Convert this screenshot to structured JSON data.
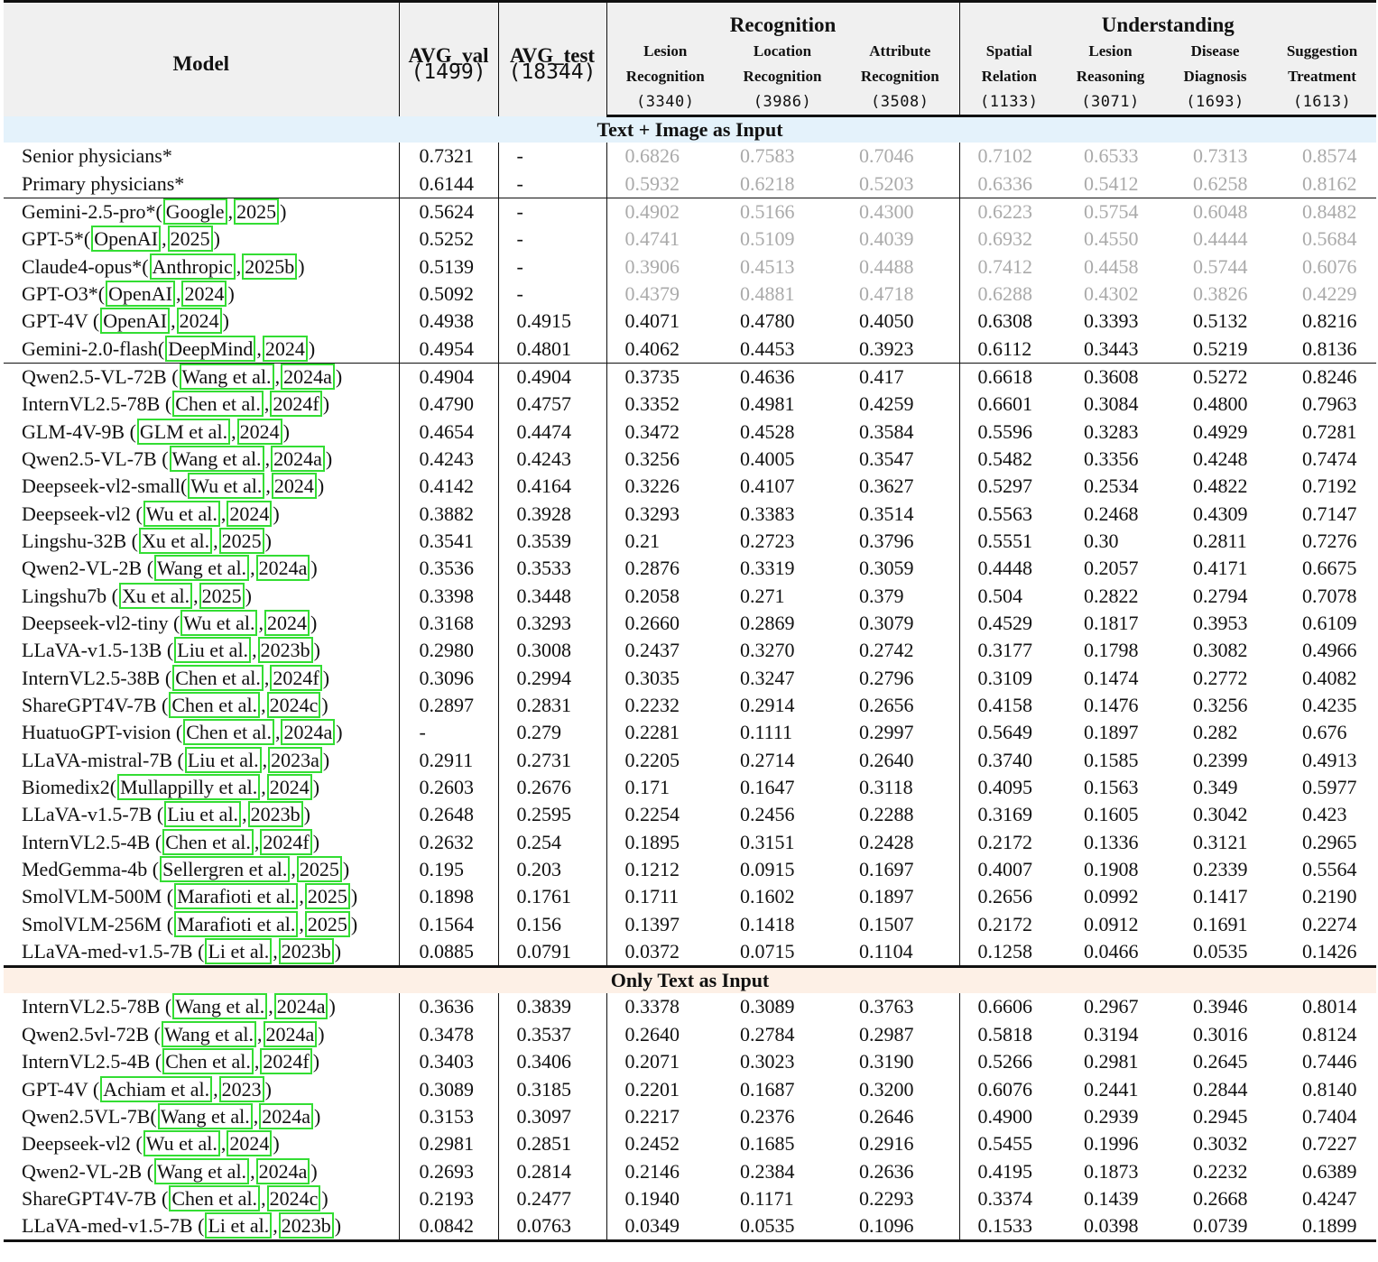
{
  "header": {
    "model": "Model",
    "avg_val": "AVG_val",
    "avg_val_count": "(1499)",
    "avg_test": "AVG_test",
    "avg_test_count": "(18344)",
    "group_recognition": "Recognition",
    "group_understanding": "Understanding",
    "columns": [
      {
        "line1": "Lesion",
        "line2": "Recognition",
        "count": "(3340)"
      },
      {
        "line1": "Location",
        "line2": "Recognition",
        "count": "(3986)"
      },
      {
        "line1": "Attribute",
        "line2": "Recognition",
        "count": "(3508)"
      },
      {
        "line1": "Spatial",
        "line2": "Relation",
        "count": "(1133)"
      },
      {
        "line1": "Lesion",
        "line2": "Reasoning",
        "count": "(3071)"
      },
      {
        "line1": "Disease",
        "line2": "Diagnosis",
        "count": "(1693)"
      },
      {
        "line1": "Suggestion",
        "line2": "Treatment",
        "count": "(1613)"
      }
    ]
  },
  "sections": [
    {
      "title": "Text + Image as Input",
      "rows": [
        {
          "name": "Senior physicians*",
          "cites": [],
          "values": [
            "0.7321",
            "-",
            "0.6826",
            "0.7583",
            "0.7046",
            "0.7102",
            "0.6533",
            "0.7313",
            "0.8574"
          ],
          "gray": true
        },
        {
          "name": "Primary physicians*",
          "cites": [],
          "values": [
            "0.6144",
            "-",
            "0.5932",
            "0.6218",
            "0.5203",
            "0.6336",
            "0.5412",
            "0.6258",
            "0.8162"
          ],
          "gray": true
        },
        {
          "name": "Gemini-2.5-pro*",
          "cites": [
            "Google",
            "2025"
          ],
          "values": [
            "0.5624",
            "-",
            "0.4902",
            "0.5166",
            "0.4300",
            "0.6223",
            "0.5754",
            "0.6048",
            "0.8482"
          ],
          "gray": true,
          "sep": true
        },
        {
          "name": "GPT-5*",
          "cites": [
            "OpenAI",
            "2025"
          ],
          "values": [
            "0.5252",
            "-",
            "0.4741",
            "0.5109",
            "0.4039",
            "0.6932",
            "0.4550",
            "0.4444",
            "0.5684"
          ],
          "gray": true
        },
        {
          "name": "Claude4-opus*",
          "cites": [
            "Anthropic",
            "2025b"
          ],
          "values": [
            "0.5139",
            "-",
            "0.3906",
            "0.4513",
            "0.4488",
            "0.7412",
            "0.4458",
            "0.5744",
            "0.6076"
          ],
          "gray": true
        },
        {
          "name": "GPT-O3*",
          "cites": [
            "OpenAI",
            "2024"
          ],
          "values": [
            "0.5092",
            "-",
            "0.4379",
            "0.4881",
            "0.4718",
            "0.6288",
            "0.4302",
            "0.3826",
            "0.4229"
          ],
          "gray": true
        },
        {
          "name": "GPT-4V ",
          "cites": [
            "OpenAI",
            "2024"
          ],
          "values": [
            "0.4938",
            "0.4915",
            "0.4071",
            "0.4780",
            "0.4050",
            "0.6308",
            "0.3393",
            "0.5132",
            "0.8216"
          ],
          "gray": false
        },
        {
          "name": "Gemini-2.0-flash",
          "cites": [
            "DeepMind",
            "2024"
          ],
          "values": [
            "0.4954",
            "0.4801",
            "0.4062",
            "0.4453",
            "0.3923",
            "0.6112",
            "0.3443",
            "0.5219",
            "0.8136"
          ],
          "gray": false
        },
        {
          "name": "Qwen2.5-VL-72B ",
          "cites": [
            "Wang et al.",
            "2024a"
          ],
          "values": [
            "0.4904",
            "0.4904",
            "0.3735",
            "0.4636",
            "0.417",
            "0.6618",
            "0.3608",
            "0.5272",
            "0.8246"
          ],
          "gray": false,
          "sep": true
        },
        {
          "name": "InternVL2.5-78B ",
          "cites": [
            "Chen et al.",
            "2024f"
          ],
          "values": [
            "0.4790",
            "0.4757",
            "0.3352",
            "0.4981",
            "0.4259",
            "0.6601",
            "0.3084",
            "0.4800",
            "0.7963"
          ],
          "gray": false
        },
        {
          "name": "GLM-4V-9B ",
          "cites": [
            "GLM et al.",
            "2024"
          ],
          "values": [
            "0.4654",
            "0.4474",
            "0.3472",
            "0.4528",
            "0.3584",
            "0.5596",
            "0.3283",
            "0.4929",
            "0.7281"
          ],
          "gray": false
        },
        {
          "name": "Qwen2.5-VL-7B ",
          "cites": [
            "Wang et al.",
            "2024a"
          ],
          "values": [
            "0.4243",
            "0.4243",
            "0.3256",
            "0.4005",
            "0.3547",
            "0.5482",
            "0.3356",
            "0.4248",
            "0.7474"
          ],
          "gray": false
        },
        {
          "name": "Deepseek-vl2-small",
          "cites": [
            "Wu et al.",
            "2024"
          ],
          "values": [
            "0.4142",
            "0.4164",
            "0.3226",
            "0.4107",
            "0.3627",
            "0.5297",
            "0.2534",
            "0.4822",
            "0.7192"
          ],
          "gray": false
        },
        {
          "name": "Deepseek-vl2 ",
          "cites": [
            "Wu et al.",
            "2024"
          ],
          "values": [
            "0.3882",
            "0.3928",
            "0.3293",
            "0.3383",
            "0.3514",
            "0.5563",
            "0.2468",
            "0.4309",
            "0.7147"
          ],
          "gray": false
        },
        {
          "name": "Lingshu-32B ",
          "cites": [
            "Xu et al.",
            "2025"
          ],
          "values": [
            "0.3541",
            "0.3539",
            "0.21",
            "0.2723",
            "0.3796",
            "0.5551",
            "0.30",
            "0.2811",
            "0.7276"
          ],
          "gray": false
        },
        {
          "name": "Qwen2-VL-2B ",
          "cites": [
            "Wang et al.",
            "2024a"
          ],
          "values": [
            "0.3536",
            "0.3533",
            "0.2876",
            "0.3319",
            "0.3059",
            "0.4448",
            "0.2057",
            "0.4171",
            "0.6675"
          ],
          "gray": false
        },
        {
          "name": "Lingshu7b ",
          "cites": [
            "Xu et al.",
            "2025"
          ],
          "values": [
            "0.3398",
            "0.3448",
            "0.2058",
            "0.271",
            "0.379",
            "0.504",
            "0.2822",
            "0.2794",
            "0.7078"
          ],
          "gray": false
        },
        {
          "name": "Deepseek-vl2-tiny ",
          "cites": [
            "Wu et al.",
            "2024"
          ],
          "values": [
            "0.3168",
            "0.3293",
            "0.2660",
            "0.2869",
            "0.3079",
            "0.4529",
            "0.1817",
            "0.3953",
            "0.6109"
          ],
          "gray": false
        },
        {
          "name": "LLaVA-v1.5-13B ",
          "cites": [
            "Liu et al.",
            "2023b"
          ],
          "values": [
            "0.2980",
            "0.3008",
            "0.2437",
            "0.3270",
            "0.2742",
            "0.3177",
            "0.1798",
            "0.3082",
            "0.4966"
          ],
          "gray": false
        },
        {
          "name": "InternVL2.5-38B ",
          "cites": [
            "Chen et al.",
            "2024f"
          ],
          "values": [
            "0.3096",
            "0.2994",
            "0.3035",
            "0.3247",
            "0.2796",
            "0.3109",
            "0.1474",
            "0.2772",
            "0.4082"
          ],
          "gray": false
        },
        {
          "name": "ShareGPT4V-7B ",
          "cites": [
            "Chen et al.",
            "2024c"
          ],
          "values": [
            "0.2897",
            "0.2831",
            "0.2232",
            "0.2914",
            "0.2656",
            "0.4158",
            "0.1476",
            "0.3256",
            "0.4235"
          ],
          "gray": false
        },
        {
          "name": "HuatuoGPT-vision ",
          "cites": [
            "Chen et al.",
            "2024a"
          ],
          "values": [
            "-",
            "0.279",
            "0.2281",
            "0.1111",
            "0.2997",
            "0.5649",
            "0.1897",
            "0.282",
            "0.676"
          ],
          "gray": false
        },
        {
          "name": "LLaVA-mistral-7B ",
          "cites": [
            "Liu et al.",
            "2023a"
          ],
          "values": [
            "0.2911",
            "0.2731",
            "0.2205",
            "0.2714",
            "0.2640",
            "0.3740",
            "0.1585",
            "0.2399",
            "0.4913"
          ],
          "gray": false
        },
        {
          "name": "Biomedix2",
          "cites": [
            "Mullappilly et al.",
            "2024"
          ],
          "values": [
            "0.2603",
            "0.2676",
            "0.171",
            "0.1647",
            "0.3118",
            "0.4095",
            "0.1563",
            "0.349",
            "0.5977"
          ],
          "gray": false
        },
        {
          "name": "LLaVA-v1.5-7B ",
          "cites": [
            "Liu et al.",
            "2023b"
          ],
          "values": [
            "0.2648",
            "0.2595",
            "0.2254",
            "0.2456",
            "0.2288",
            "0.3169",
            "0.1605",
            "0.3042",
            "0.423"
          ],
          "gray": false
        },
        {
          "name": "InternVL2.5-4B ",
          "cites": [
            "Chen et al.",
            "2024f"
          ],
          "values": [
            "0.2632",
            "0.254",
            "0.1895",
            "0.3151",
            "0.2428",
            "0.2172",
            "0.1336",
            "0.3121",
            "0.2965"
          ],
          "gray": false
        },
        {
          "name": "MedGemma-4b ",
          "cites": [
            "Sellergren et al.",
            "2025"
          ],
          "values": [
            "0.195",
            "0.203",
            "0.1212",
            "0.0915",
            "0.1697",
            "0.4007",
            "0.1908",
            "0.2339",
            "0.5564"
          ],
          "gray": false
        },
        {
          "name": "SmolVLM-500M ",
          "cites": [
            "Marafioti et al.",
            "2025"
          ],
          "values": [
            "0.1898",
            "0.1761",
            "0.1711",
            "0.1602",
            "0.1897",
            "0.2656",
            "0.0992",
            "0.1417",
            "0.2190"
          ],
          "gray": false
        },
        {
          "name": "SmolVLM-256M ",
          "cites": [
            "Marafioti et al.",
            "2025"
          ],
          "values": [
            "0.1564",
            "0.156",
            "0.1397",
            "0.1418",
            "0.1507",
            "0.2172",
            "0.0912",
            "0.1691",
            "0.2274"
          ],
          "gray": false
        },
        {
          "name": "LLaVA-med-v1.5-7B ",
          "cites": [
            "Li et al.",
            "2023b"
          ],
          "values": [
            "0.0885",
            "0.0791",
            "0.0372",
            "0.0715",
            "0.1104",
            "0.1258",
            "0.0466",
            "0.0535",
            "0.1426"
          ],
          "gray": false
        }
      ]
    },
    {
      "title": "Only Text as Input",
      "rows": [
        {
          "name": "InternVL2.5-78B ",
          "cites": [
            "Wang et al.",
            "2024a"
          ],
          "values": [
            "0.3636",
            "0.3839",
            "0.3378",
            "0.3089",
            "0.3763",
            "0.6606",
            "0.2967",
            "0.3946",
            "0.8014"
          ],
          "gray": false
        },
        {
          "name": "Qwen2.5vl-72B ",
          "cites": [
            "Wang et al.",
            "2024a"
          ],
          "values": [
            "0.3478",
            "0.3537",
            "0.2640",
            "0.2784",
            "0.2987",
            "0.5818",
            "0.3194",
            "0.3016",
            "0.8124"
          ],
          "gray": false
        },
        {
          "name": "InternVL2.5-4B ",
          "cites": [
            "Chen et al.",
            "2024f"
          ],
          "values": [
            "0.3403",
            "0.3406",
            "0.2071",
            "0.3023",
            "0.3190",
            "0.5266",
            "0.2981",
            "0.2645",
            "0.7446"
          ],
          "gray": false
        },
        {
          "name": "GPT-4V ",
          "cites": [
            "Achiam et al.",
            "2023"
          ],
          "values": [
            "0.3089",
            "0.3185",
            "0.2201",
            "0.1687",
            "0.3200",
            "0.6076",
            "0.2441",
            "0.2844",
            "0.8140"
          ],
          "gray": false
        },
        {
          "name": "Qwen2.5VL-7B",
          "cites": [
            "Wang et al.",
            "2024a"
          ],
          "values": [
            "0.3153",
            "0.3097",
            "0.2217",
            "0.2376",
            "0.2646",
            "0.4900",
            "0.2939",
            "0.2945",
            "0.7404"
          ],
          "gray": false
        },
        {
          "name": "Deepseek-vl2 ",
          "cites": [
            "Wu et al.",
            "2024"
          ],
          "values": [
            "0.2981",
            "0.2851",
            "0.2452",
            "0.1685",
            "0.2916",
            "0.5455",
            "0.1996",
            "0.3032",
            "0.7227"
          ],
          "gray": false
        },
        {
          "name": "Qwen2-VL-2B ",
          "cites": [
            "Wang et al.",
            "2024a"
          ],
          "values": [
            "0.2693",
            "0.2814",
            "0.2146",
            "0.2384",
            "0.2636",
            "0.4195",
            "0.1873",
            "0.2232",
            "0.6389"
          ],
          "gray": false
        },
        {
          "name": "ShareGPT4V-7B ",
          "cites": [
            "Chen et al.",
            "2024c"
          ],
          "values": [
            "0.2193",
            "0.2477",
            "0.1940",
            "0.1171",
            "0.2293",
            "0.3374",
            "0.1439",
            "0.2668",
            "0.4247"
          ],
          "gray": false
        },
        {
          "name": "LLaVA-med-v1.5-7B ",
          "cites": [
            "Li et al.",
            "2023b"
          ],
          "values": [
            "0.0842",
            "0.0763",
            "0.0349",
            "0.0535",
            "0.1096",
            "0.1533",
            "0.0398",
            "0.0739",
            "0.1899"
          ],
          "gray": false
        }
      ]
    }
  ],
  "colors": {
    "citation_box": "#33dd33",
    "gray_text": "#aaaaaa",
    "section_text_image_bg": "#e4f2fb",
    "section_text_only_bg": "#fdf0e6",
    "header_bg": "#f0f0f0"
  }
}
